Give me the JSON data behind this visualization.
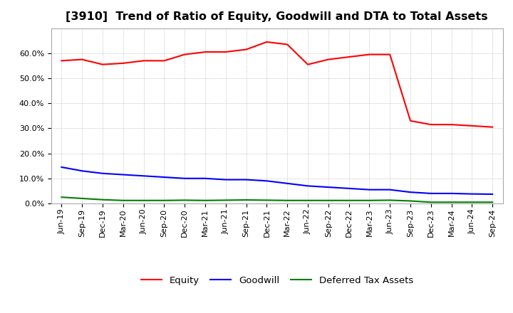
{
  "title": "[3910]  Trend of Ratio of Equity, Goodwill and DTA to Total Assets",
  "x_labels": [
    "Jun-19",
    "Sep-19",
    "Dec-19",
    "Mar-20",
    "Jun-20",
    "Sep-20",
    "Dec-20",
    "Mar-21",
    "Jun-21",
    "Sep-21",
    "Dec-21",
    "Mar-22",
    "Jun-22",
    "Sep-22",
    "Dec-22",
    "Mar-23",
    "Jun-23",
    "Sep-23",
    "Dec-23",
    "Mar-24",
    "Jun-24",
    "Sep-24"
  ],
  "equity": [
    57.0,
    57.5,
    55.5,
    56.0,
    57.0,
    57.0,
    59.5,
    60.5,
    60.5,
    61.5,
    64.5,
    63.5,
    55.5,
    57.5,
    58.5,
    59.5,
    59.5,
    33.0,
    31.5,
    31.5,
    31.0,
    30.5
  ],
  "goodwill": [
    14.5,
    13.0,
    12.0,
    11.5,
    11.0,
    10.5,
    10.0,
    10.0,
    9.5,
    9.5,
    9.0,
    8.0,
    7.0,
    6.5,
    6.0,
    5.5,
    5.5,
    4.5,
    4.0,
    4.0,
    3.8,
    3.7
  ],
  "dta": [
    2.5,
    2.0,
    1.5,
    1.2,
    1.2,
    1.2,
    1.3,
    1.2,
    1.3,
    1.4,
    1.3,
    1.2,
    1.2,
    1.2,
    1.2,
    1.2,
    1.3,
    1.0,
    0.5,
    0.5,
    0.5,
    0.5
  ],
  "equity_color": "#FF0000",
  "goodwill_color": "#0000FF",
  "dta_color": "#008000",
  "ylim": [
    0.0,
    70.0
  ],
  "yticks": [
    0.0,
    10.0,
    20.0,
    30.0,
    40.0,
    50.0,
    60.0
  ],
  "background_color": "#FFFFFF",
  "plot_bg_color": "#FFFFFF",
  "grid_color": "#AAAAAA",
  "legend_labels": [
    "Equity",
    "Goodwill",
    "Deferred Tax Assets"
  ],
  "title_fontsize": 11.5,
  "tick_fontsize": 8.0,
  "legend_fontsize": 9.5
}
